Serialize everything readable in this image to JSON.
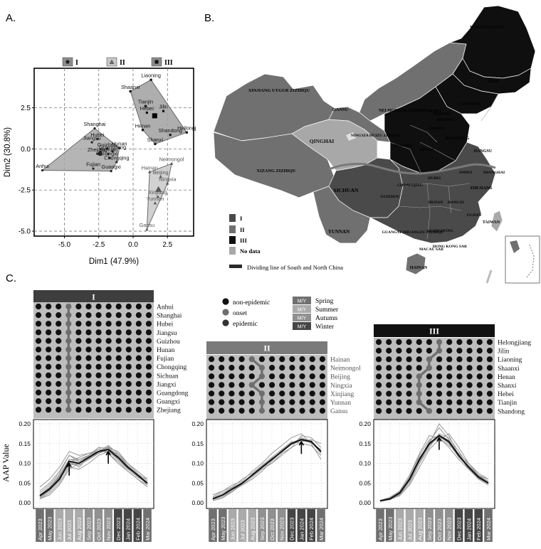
{
  "panel_labels": {
    "a": "A.",
    "b": "B.",
    "c": "C."
  },
  "legend_a": [
    {
      "label": "I",
      "marker": "circle",
      "color": "#8c8c8c"
    },
    {
      "label": "II",
      "marker": "triangle",
      "color": "#c8c8c8"
    },
    {
      "label": "III",
      "marker": "square",
      "color": "#8c8c8c"
    }
  ],
  "chart_data": [
    {
      "type": "scatter",
      "title": "",
      "xlabel": "Dim1 (47.9%)",
      "ylabel": "Dim2 (30.8%)",
      "xlim": [
        -7.2,
        4.4
      ],
      "ylim": [
        -5.3,
        4.9
      ],
      "x_ticks": [
        -5.0,
        -2.5,
        0.0,
        2.5
      ],
      "x_tick_labels": [
        "-5.0",
        "-2.5",
        "0.0",
        "2.5"
      ],
      "y_ticks": [
        -5.0,
        -2.5,
        0.0,
        2.5
      ],
      "y_tick_labels": [
        "-5.0",
        "-2.5",
        "0.0",
        "2.5"
      ],
      "grid": "dashed",
      "legend": "top",
      "series": [
        {
          "name": "I",
          "marker": "circle",
          "points": [
            {
              "label": "Anhui",
              "x": -6.6,
              "y": -1.3
            },
            {
              "label": "Shanghai",
              "x": -2.8,
              "y": 1.25
            },
            {
              "label": "Hubei",
              "x": -2.6,
              "y": 0.6
            },
            {
              "label": "Jiangsu",
              "x": -3.0,
              "y": 0.4
            },
            {
              "label": "Guizhou",
              "x": -1.9,
              "y": 0.0
            },
            {
              "label": "Hunan",
              "x": -1.0,
              "y": 0.05
            },
            {
              "label": "Guangdong",
              "x": -1.5,
              "y": -0.15
            },
            {
              "label": "Sichuan",
              "x": -1.8,
              "y": -0.3
            },
            {
              "label": "Zhejiang",
              "x": -2.6,
              "y": -0.3
            },
            {
              "label": "Jiangxi",
              "x": -1.7,
              "y": -0.55
            },
            {
              "label": "Chongqing",
              "x": -1.2,
              "y": -0.8
            },
            {
              "label": "Fujian",
              "x": -2.9,
              "y": -1.2
            },
            {
              "label": "Guangxi",
              "x": -1.6,
              "y": -1.35
            }
          ]
        },
        {
          "name": "II",
          "marker": "triangle",
          "points": [
            {
              "label": "Hainan",
              "x": 1.2,
              "y": -1.4
            },
            {
              "label": "Neimongol",
              "x": 2.8,
              "y": -0.9
            },
            {
              "label": "Beijing",
              "x": 2.0,
              "y": -1.7
            },
            {
              "label": "Ningxia",
              "x": 2.5,
              "y": -2.1
            },
            {
              "label": "Xinjiang",
              "x": 1.8,
              "y": -2.9
            },
            {
              "label": "Yunnan",
              "x": 1.6,
              "y": -3.3
            },
            {
              "label": "Gansu",
              "x": 1.0,
              "y": -4.9
            }
          ]
        },
        {
          "name": "III",
          "marker": "square",
          "points": [
            {
              "label": "Liaoning",
              "x": 1.3,
              "y": 4.2
            },
            {
              "label": "Shaanxi",
              "x": -0.2,
              "y": 3.5
            },
            {
              "label": "Tianjin",
              "x": 0.9,
              "y": 2.6
            },
            {
              "label": "Hebei",
              "x": 1.0,
              "y": 2.2
            },
            {
              "label": "Jilin",
              "x": 2.2,
              "y": 2.3
            },
            {
              "label": "Henan",
              "x": 0.7,
              "y": 1.15
            },
            {
              "label": "Shandong",
              "x": 2.7,
              "y": 0.85
            },
            {
              "label": "Heilongj",
              "x": 3.9,
              "y": 1.0
            },
            {
              "label": "Shanxi",
              "x": 1.6,
              "y": 0.3
            }
          ]
        }
      ]
    },
    {
      "type": "line",
      "title": "I",
      "ylabel": "AAP Value",
      "ylim": [
        0.0,
        0.2
      ],
      "y_ticks": [
        0.0,
        0.05,
        0.1,
        0.15,
        0.2
      ],
      "y_tick_labels": [
        "0.00",
        "0.05",
        "0.10",
        "0.15",
        "0.20"
      ],
      "categories": [
        "Apr 2023",
        "May 2023",
        "Jun 2023",
        "Jul 2023",
        "Aug 2023",
        "Sep 2023",
        "Oct 2023",
        "Nov 2023",
        "Dec 2023",
        "Jan 2024",
        "Feb 2024",
        "Mar 2024"
      ],
      "season_colors": [
        "#707070",
        "#707070",
        "#aaaaaa",
        "#aaaaaa",
        "#aaaaaa",
        "#909090",
        "#909090",
        "#909090",
        "#454545",
        "#454545",
        "#454545",
        "#707070"
      ],
      "arrows_at": [
        3,
        7
      ],
      "mean": [
        0.018,
        0.035,
        0.06,
        0.105,
        0.1,
        0.115,
        0.13,
        0.135,
        0.115,
        0.09,
        0.07,
        0.05
      ],
      "series": [
        [
          0.015,
          0.03,
          0.055,
          0.1,
          0.095,
          0.11,
          0.125,
          0.14,
          0.12,
          0.09,
          0.07,
          0.045
        ],
        [
          0.02,
          0.04,
          0.07,
          0.11,
          0.11,
          0.12,
          0.13,
          0.145,
          0.11,
          0.085,
          0.065,
          0.05
        ],
        [
          0.01,
          0.025,
          0.05,
          0.09,
          0.085,
          0.1,
          0.12,
          0.13,
          0.125,
          0.1,
          0.075,
          0.055
        ],
        [
          0.025,
          0.045,
          0.075,
          0.12,
          0.105,
          0.12,
          0.14,
          0.125,
          0.105,
          0.08,
          0.06,
          0.04
        ],
        [
          0.018,
          0.035,
          0.065,
          0.1,
          0.115,
          0.125,
          0.13,
          0.14,
          0.12,
          0.095,
          0.072,
          0.05
        ],
        [
          0.012,
          0.03,
          0.058,
          0.095,
          0.1,
          0.11,
          0.125,
          0.135,
          0.11,
          0.088,
          0.07,
          0.06
        ],
        [
          0.03,
          0.05,
          0.08,
          0.12,
          0.11,
          0.12,
          0.135,
          0.125,
          0.1,
          0.08,
          0.06,
          0.045
        ],
        [
          0.015,
          0.032,
          0.06,
          0.105,
          0.09,
          0.115,
          0.13,
          0.145,
          0.125,
          0.095,
          0.07,
          0.05
        ],
        [
          0.04,
          0.06,
          0.09,
          0.13,
          0.12,
          0.125,
          0.135,
          0.13,
          0.11,
          0.085,
          0.065,
          0.05
        ],
        [
          0.01,
          0.02,
          0.045,
          0.085,
          0.1,
          0.11,
          0.125,
          0.14,
          0.13,
          0.1,
          0.08,
          0.06
        ],
        [
          0.02,
          0.038,
          0.068,
          0.11,
          0.105,
          0.118,
          0.14,
          0.138,
          0.115,
          0.09,
          0.068,
          0.048
        ],
        [
          0.016,
          0.034,
          0.062,
          0.1,
          0.098,
          0.112,
          0.128,
          0.142,
          0.118,
          0.092,
          0.07,
          0.05
        ]
      ]
    },
    {
      "type": "line",
      "title": "II",
      "ylim": [
        0.0,
        0.2
      ],
      "y_ticks": [
        0.0,
        0.05,
        0.1,
        0.15,
        0.2
      ],
      "y_tick_labels": [
        "0.00",
        "0.05",
        "0.10",
        "0.15",
        "0.20"
      ],
      "categories": [
        "Apr 2023",
        "May 2023",
        "Jun 2023",
        "Jul 2023",
        "Aug 2023",
        "Sep 2023",
        "Oct 2023",
        "Nov 2023",
        "Dec 2023",
        "Jan 2024",
        "Feb 2024",
        "Mar 2024"
      ],
      "season_colors": [
        "#707070",
        "#707070",
        "#aaaaaa",
        "#aaaaaa",
        "#aaaaaa",
        "#909090",
        "#909090",
        "#909090",
        "#454545",
        "#454545",
        "#454545",
        "#707070"
      ],
      "arrows_at": [
        9
      ],
      "mean": [
        0.01,
        0.02,
        0.035,
        0.05,
        0.07,
        0.09,
        0.11,
        0.13,
        0.15,
        0.16,
        0.155,
        0.13
      ],
      "series": [
        [
          0.005,
          0.015,
          0.03,
          0.045,
          0.065,
          0.085,
          0.1,
          0.125,
          0.14,
          0.17,
          0.165,
          0.14
        ],
        [
          0.01,
          0.02,
          0.04,
          0.06,
          0.075,
          0.095,
          0.115,
          0.135,
          0.155,
          0.15,
          0.145,
          0.12
        ],
        [
          0.015,
          0.03,
          0.045,
          0.055,
          0.08,
          0.1,
          0.125,
          0.145,
          0.165,
          0.175,
          0.15,
          0.11
        ],
        [
          0.008,
          0.018,
          0.03,
          0.05,
          0.07,
          0.09,
          0.1,
          0.12,
          0.14,
          0.155,
          0.16,
          0.15
        ],
        [
          0.02,
          0.03,
          0.04,
          0.045,
          0.06,
          0.08,
          0.105,
          0.13,
          0.15,
          0.165,
          0.155,
          0.125
        ],
        [
          0.005,
          0.012,
          0.028,
          0.048,
          0.072,
          0.092,
          0.112,
          0.128,
          0.148,
          0.158,
          0.152,
          0.135
        ],
        [
          0.012,
          0.025,
          0.038,
          0.052,
          0.068,
          0.088,
          0.108,
          0.132,
          0.152,
          0.162,
          0.158,
          0.128
        ]
      ]
    },
    {
      "type": "line",
      "title": "III",
      "ylim": [
        0.0,
        0.2
      ],
      "y_ticks": [
        0.0,
        0.05,
        0.1,
        0.15,
        0.2
      ],
      "y_tick_labels": [
        "0.00",
        "0.05",
        "0.10",
        "0.15",
        "0.20"
      ],
      "categories": [
        "Apr 2023",
        "May 2023",
        "Jun 2023",
        "Jul 2023",
        "Aug 2023",
        "Sep 2023",
        "Oct 2023",
        "Nov 2023",
        "Dec 2023",
        "Jan 2024",
        "Feb 2024",
        "Mar 2024"
      ],
      "season_colors": [
        "#707070",
        "#707070",
        "#aaaaaa",
        "#aaaaaa",
        "#aaaaaa",
        "#909090",
        "#909090",
        "#909090",
        "#454545",
        "#454545",
        "#454545",
        "#707070"
      ],
      "arrows_at": [
        6
      ],
      "mean": [
        0.005,
        0.01,
        0.025,
        0.06,
        0.11,
        0.15,
        0.17,
        0.155,
        0.12,
        0.09,
        0.065,
        0.05
      ],
      "series": [
        [
          0.004,
          0.008,
          0.02,
          0.05,
          0.1,
          0.15,
          0.2,
          0.17,
          0.12,
          0.085,
          0.06,
          0.045
        ],
        [
          0.005,
          0.012,
          0.03,
          0.07,
          0.125,
          0.17,
          0.165,
          0.14,
          0.11,
          0.085,
          0.065,
          0.05
        ],
        [
          0.006,
          0.01,
          0.022,
          0.055,
          0.1,
          0.14,
          0.175,
          0.165,
          0.13,
          0.095,
          0.07,
          0.055
        ],
        [
          0.003,
          0.008,
          0.018,
          0.045,
          0.09,
          0.135,
          0.16,
          0.175,
          0.14,
          0.1,
          0.07,
          0.05
        ],
        [
          0.006,
          0.014,
          0.03,
          0.07,
          0.12,
          0.16,
          0.17,
          0.15,
          0.115,
          0.09,
          0.07,
          0.06
        ],
        [
          0.004,
          0.009,
          0.024,
          0.06,
          0.11,
          0.155,
          0.19,
          0.16,
          0.12,
          0.09,
          0.065,
          0.05
        ],
        [
          0.005,
          0.011,
          0.026,
          0.065,
          0.115,
          0.148,
          0.165,
          0.145,
          0.125,
          0.1,
          0.075,
          0.06
        ],
        [
          0.004,
          0.01,
          0.028,
          0.062,
          0.105,
          0.145,
          0.172,
          0.158,
          0.118,
          0.088,
          0.062,
          0.048
        ],
        [
          0.006,
          0.012,
          0.02,
          0.058,
          0.108,
          0.152,
          0.168,
          0.152,
          0.122,
          0.092,
          0.068,
          0.052
        ]
      ]
    }
  ],
  "map": {
    "regions": [
      {
        "label": "XINJIANG UYGUR ZIZHIQU",
        "group": "II"
      },
      {
        "label": "XIZANG ZIZHIQU",
        "group": "II"
      },
      {
        "label": "QINGHAI",
        "group": "No data"
      },
      {
        "label": "GANSU",
        "group": "II"
      },
      {
        "label": "NEI MONGOL ZIZHIQU",
        "group": "II"
      },
      {
        "label": "SICHUAN",
        "group": "I"
      },
      {
        "label": "YUNNAN",
        "group": "II"
      },
      {
        "label": "HEILONGJIANG",
        "group": "III"
      },
      {
        "label": "JILIN",
        "group": "III"
      },
      {
        "label": "LIAONING",
        "group": "III"
      },
      {
        "label": "HEBEI",
        "group": "III"
      },
      {
        "label": "BEIJING",
        "group": "II"
      },
      {
        "label": "TIANJIN",
        "group": "III"
      },
      {
        "label": "NINGXIA HUIZU ZIZHIQU",
        "group": "II"
      },
      {
        "label": "SHAANXI",
        "group": "III"
      },
      {
        "label": "SHANXI",
        "group": "III"
      },
      {
        "label": "SHANDONG",
        "group": "III"
      },
      {
        "label": "HENAN",
        "group": "III"
      },
      {
        "label": "JIANGSU",
        "group": "I"
      },
      {
        "label": "SHANGHAI",
        "group": "I"
      },
      {
        "label": "ANHUI",
        "group": "I"
      },
      {
        "label": "HUBEI",
        "group": "I"
      },
      {
        "label": "CHONGQING",
        "group": "I"
      },
      {
        "label": "ZHEJIANG",
        "group": "I"
      },
      {
        "label": "HUNAN",
        "group": "I"
      },
      {
        "label": "JIANGXI",
        "group": "I"
      },
      {
        "label": "GUIZHOU",
        "group": "I"
      },
      {
        "label": "FUJIAN",
        "group": "I"
      },
      {
        "label": "TAIWAN",
        "group": "No data"
      },
      {
        "label": "GUANGXI ZHUANGZU ZIZHIQU",
        "group": "I"
      },
      {
        "label": "GUANGDONG",
        "group": "I"
      },
      {
        "label": "HONG KONG SAR",
        "group": "I"
      },
      {
        "label": "MACAU SAR",
        "group": "I"
      },
      {
        "label": "HAINAN",
        "group": "II"
      }
    ],
    "legend": [
      {
        "label": "I",
        "color": "#4a4a4a"
      },
      {
        "label": "II",
        "color": "#707070"
      },
      {
        "label": "III",
        "color": "#0f0f0f"
      },
      {
        "label": "No data",
        "color": "#a8a8a8"
      },
      {
        "label": "Dividing line of South and North China",
        "color": "#2a2a2a"
      }
    ],
    "colors": {
      "I": "#4a4a4a",
      "II": "#707070",
      "III": "#0f0f0f",
      "No data": "#a8a8a8",
      "divider": "#7a7a7a"
    }
  },
  "status_legend": [
    {
      "label": "non-epidemic",
      "color": "#111111"
    },
    {
      "label": "onset",
      "color": "#6e6e6e"
    },
    {
      "label": "epidemic",
      "color": "#333333"
    }
  ],
  "season_legend": [
    {
      "box": "M/Y",
      "label": "Spring",
      "color": "#707070"
    },
    {
      "box": "M/Y",
      "label": "Summer",
      "color": "#aaaaaa"
    },
    {
      "box": "M/Y",
      "label": "Autumn",
      "color": "#909090"
    },
    {
      "box": "M/Y",
      "label": "Winter",
      "color": "#454545"
    }
  ],
  "clusters": [
    {
      "title": "I",
      "title_bg": "#3e3e3e",
      "provinces": [
        "Anhui",
        "Shanghai",
        "Hubei",
        "Jiangsu",
        "Guizhou",
        "Hunan",
        "Fujian",
        "Chongqing",
        "Sichuan",
        "Jiangxi",
        "Guangdong",
        "Guangxi",
        "Zhejiang"
      ],
      "onset_month": [
        3,
        3,
        3,
        3,
        3,
        3,
        3,
        3,
        3,
        3,
        3,
        3,
        3
      ]
    },
    {
      "title": "II",
      "title_bg": "#7a7a7a",
      "provinces": [
        "Hainan",
        "Neimongol",
        "Beijing",
        "Ningxia",
        "Xinjiang",
        "Yunnan",
        "Gansu"
      ],
      "onset_month": [
        4,
        5,
        5,
        4,
        5,
        5,
        5
      ]
    },
    {
      "title": "III",
      "title_bg": "#111111",
      "provinces": [
        "Helongjiang",
        "Jilin",
        "Liaoning",
        "Shaanxi",
        "Henan",
        "Shanxi",
        "Hebei",
        "Tianjin",
        "Shandong"
      ],
      "onset_month": [
        6,
        6,
        5,
        5,
        4,
        4,
        4,
        4,
        5
      ]
    }
  ]
}
